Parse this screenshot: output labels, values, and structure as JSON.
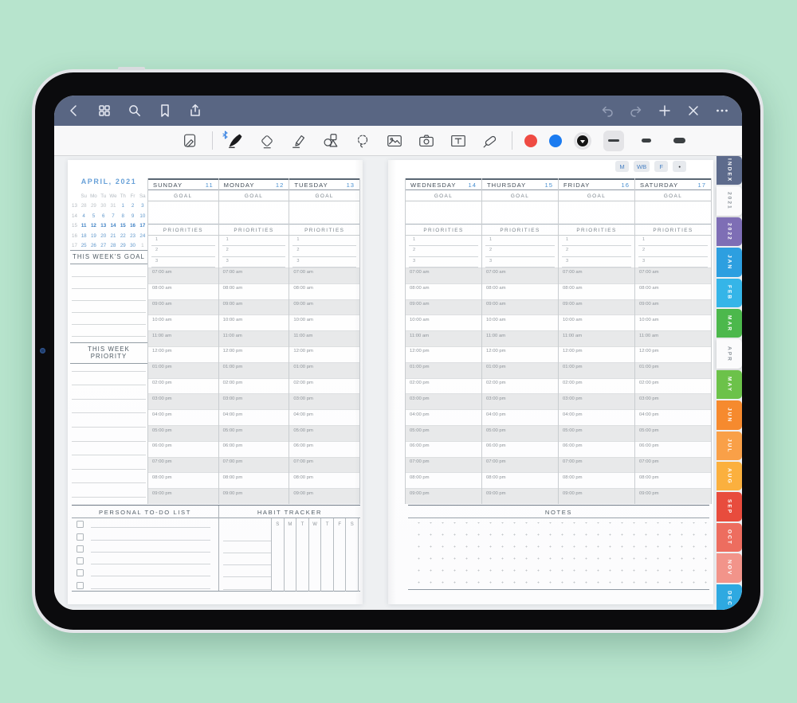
{
  "top_nav": {
    "left_icons": [
      "back",
      "pages-overview",
      "search",
      "bookmark",
      "share"
    ],
    "right_icons": [
      "undo",
      "redo",
      "add-page",
      "close",
      "more-options"
    ]
  },
  "tool_bar": {
    "tools": [
      "page-view",
      "pen",
      "eraser",
      "highlighter",
      "shapes",
      "lasso",
      "image",
      "camera",
      "text",
      "tape"
    ],
    "active_tool": "pen",
    "ink_colors": [
      "#ef4b43",
      "#1b7bf0",
      "#141414"
    ],
    "selected_color": "#141414",
    "stroke_widths": [
      "thin",
      "medium",
      "thick"
    ],
    "selected_stroke": "thin"
  },
  "view_buttons": [
    {
      "label": "M"
    },
    {
      "label": "WB"
    },
    {
      "label": "F"
    },
    {
      "label": "•"
    }
  ],
  "side_tabs": [
    {
      "label": "INDEX",
      "bg": "#5d6b8c",
      "fg": "#ffffff",
      "active": false
    },
    {
      "label": "2021",
      "bg": "#fbfbfc",
      "fg": "#8d949b",
      "active": true
    },
    {
      "label": "2022",
      "bg": "#7e6eb5",
      "fg": "#ffffff",
      "active": false
    },
    {
      "label": "JAN",
      "bg": "#2d9fe0",
      "fg": "#ffffff",
      "active": false
    },
    {
      "label": "FEB",
      "bg": "#35b5e8",
      "fg": "#ffffff",
      "active": false
    },
    {
      "label": "MAR",
      "bg": "#4cb84c",
      "fg": "#ffffff",
      "active": false
    },
    {
      "label": "APR",
      "bg": "#fbfbfc",
      "fg": "#8d949b",
      "active": true
    },
    {
      "label": "MAY",
      "bg": "#6cc24a",
      "fg": "#ffffff",
      "active": false
    },
    {
      "label": "JUN",
      "bg": "#f68a2e",
      "fg": "#ffffff",
      "active": false
    },
    {
      "label": "JUL",
      "bg": "#f9a048",
      "fg": "#ffffff",
      "active": false
    },
    {
      "label": "AUG",
      "bg": "#fbb03e",
      "fg": "#ffffff",
      "active": false
    },
    {
      "label": "SEP",
      "bg": "#e84c3d",
      "fg": "#ffffff",
      "active": false
    },
    {
      "label": "OCT",
      "bg": "#ed6d5f",
      "fg": "#ffffff",
      "active": false
    },
    {
      "label": "NOV",
      "bg": "#f2948a",
      "fg": "#ffffff",
      "active": false
    },
    {
      "label": "DEC",
      "bg": "#2ea9e1",
      "fg": "#ffffff",
      "active": false
    }
  ],
  "planner_shared": {
    "goal_label": "GOAL",
    "priorities_label": "PRIORITIES",
    "priority_numbers": [
      "1",
      "2",
      "3"
    ],
    "time_slots": [
      "07:00 am",
      "08:00 am",
      "09:00 am",
      "10:00 am",
      "11:00 am",
      "12:00 pm",
      "01:00 pm",
      "02:00 pm",
      "03:00 pm",
      "04:00 pm",
      "05:00 pm",
      "06:00 pm",
      "07:00 pm",
      "08:00 pm",
      "09:00 pm"
    ]
  },
  "left_page": {
    "mini_calendar": {
      "title": "APRIL, 2021",
      "weekday_headers": [
        "Su",
        "Mo",
        "Tu",
        "We",
        "Th",
        "Fr",
        "Sa"
      ],
      "weeks": [
        {
          "week_no": "13",
          "days": [
            "28",
            "29",
            "30",
            "31",
            "1",
            "2",
            "3"
          ],
          "muted": [
            true,
            true,
            true,
            true,
            false,
            false,
            false
          ],
          "current": false
        },
        {
          "week_no": "14",
          "days": [
            "4",
            "5",
            "6",
            "7",
            "8",
            "9",
            "10"
          ],
          "muted": [
            false,
            false,
            false,
            false,
            false,
            false,
            false
          ],
          "current": false
        },
        {
          "week_no": "15",
          "days": [
            "11",
            "12",
            "13",
            "14",
            "15",
            "16",
            "17"
          ],
          "muted": [
            false,
            false,
            false,
            false,
            false,
            false,
            false
          ],
          "current": true
        },
        {
          "week_no": "16",
          "days": [
            "18",
            "19",
            "20",
            "21",
            "22",
            "23",
            "24"
          ],
          "muted": [
            false,
            false,
            false,
            false,
            false,
            false,
            false
          ],
          "current": false
        },
        {
          "week_no": "17",
          "days": [
            "25",
            "26",
            "27",
            "28",
            "29",
            "30",
            "1"
          ],
          "muted": [
            false,
            false,
            false,
            false,
            false,
            false,
            true
          ],
          "current": false
        }
      ]
    },
    "week_goal_title": "THIS WEEK'S GOAL",
    "week_priority_title": "THIS WEEK PRIORITY",
    "days": [
      {
        "name": "SUNDAY",
        "date": "11"
      },
      {
        "name": "MONDAY",
        "date": "12"
      },
      {
        "name": "TUESDAY",
        "date": "13"
      }
    ],
    "todo_title": "PERSONAL TO-DO LIST",
    "habit_title": "HABIT TRACKER",
    "habit_day_letters": [
      "S",
      "M",
      "T",
      "W",
      "T",
      "F",
      "S"
    ]
  },
  "right_page": {
    "days": [
      {
        "name": "WEDNESDAY",
        "date": "14"
      },
      {
        "name": "THURSDAY",
        "date": "15"
      },
      {
        "name": "FRIDAY",
        "date": "16"
      },
      {
        "name": "SATURDAY",
        "date": "17"
      }
    ],
    "notes_title": "NOTES"
  }
}
